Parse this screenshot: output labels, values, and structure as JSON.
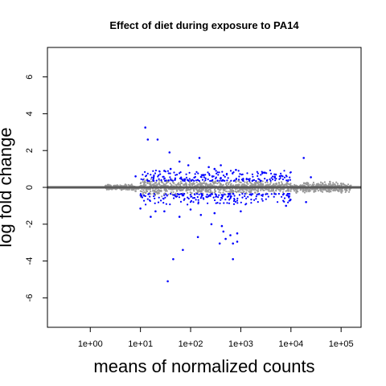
{
  "chart_data": {
    "type": "scatter",
    "title": "Effect of diet during exposure to PA14",
    "xlabel": "means of normalized counts",
    "ylabel": "log fold change",
    "x_scale": "log10",
    "xlim": [
      0.14,
      250000
    ],
    "ylim": [
      -7.6,
      7.6
    ],
    "x_ticks": [
      {
        "value": 1,
        "label": "1e+00"
      },
      {
        "value": 10,
        "label": "1e+01"
      },
      {
        "value": 100,
        "label": "1e+02"
      },
      {
        "value": 1000,
        "label": "1e+03"
      },
      {
        "value": 10000,
        "label": "1e+04"
      },
      {
        "value": 100000,
        "label": "1e+05"
      }
    ],
    "y_ticks": [
      {
        "value": 6,
        "label": "6"
      },
      {
        "value": 4,
        "label": "4"
      },
      {
        "value": 2,
        "label": "2"
      },
      {
        "value": 0,
        "label": "0"
      },
      {
        "value": -2,
        "label": "-2"
      },
      {
        "value": -4,
        "label": "-4"
      },
      {
        "value": -6,
        "label": "-6"
      }
    ],
    "zero_line": {
      "y": 0,
      "color": "#595959"
    },
    "colors": {
      "significant": "#0000ff",
      "not_significant": "#999999",
      "zero_line": "#595959"
    },
    "series": [
      {
        "color": "#0000ff",
        "points": [
          {
            "x": 12.5,
            "y": 3.25
          },
          {
            "x": 14,
            "y": 2.6
          },
          {
            "x": 22,
            "y": 2.6
          },
          {
            "x": 38,
            "y": 1.9
          },
          {
            "x": 18000,
            "y": 1.6
          },
          {
            "x": 150,
            "y": 1.6
          },
          {
            "x": 60,
            "y": 1.4
          },
          {
            "x": 90,
            "y": 1.2
          },
          {
            "x": 400,
            "y": 1.2
          },
          {
            "x": 230,
            "y": 1.1
          },
          {
            "x": 300,
            "y": 1.0
          },
          {
            "x": 800,
            "y": 0.95
          },
          {
            "x": 40,
            "y": 1.0
          },
          {
            "x": 30,
            "y": 0.9
          },
          {
            "x": 3000,
            "y": 0.8
          },
          {
            "x": 5000,
            "y": 0.7
          },
          {
            "x": 25000,
            "y": 0.55
          },
          {
            "x": 8,
            "y": 0.6
          },
          {
            "x": 10,
            "y": -1.15
          },
          {
            "x": 16,
            "y": -1.6
          },
          {
            "x": 20,
            "y": -1.3
          },
          {
            "x": 60,
            "y": -1.6
          },
          {
            "x": 30,
            "y": -1.3
          },
          {
            "x": 100,
            "y": -1.2
          },
          {
            "x": 160,
            "y": -1.5
          },
          {
            "x": 300,
            "y": -1.4
          },
          {
            "x": 1000,
            "y": -1.3
          },
          {
            "x": 8000,
            "y": -1.0
          },
          {
            "x": 20000,
            "y": -0.8
          },
          {
            "x": 140,
            "y": -2.7
          },
          {
            "x": 450,
            "y": -2.4
          },
          {
            "x": 500,
            "y": -2.8
          },
          {
            "x": 620,
            "y": -2.6
          },
          {
            "x": 850,
            "y": -2.5
          },
          {
            "x": 850,
            "y": -2.95
          },
          {
            "x": 380,
            "y": -3.05
          },
          {
            "x": 700,
            "y": -3.05
          },
          {
            "x": 420,
            "y": -2.1
          },
          {
            "x": 260,
            "y": -2.0
          },
          {
            "x": 70,
            "y": -3.4
          },
          {
            "x": 45,
            "y": -3.9
          },
          {
            "x": 700,
            "y": -3.9
          },
          {
            "x": 35,
            "y": -5.1
          }
        ]
      },
      {
        "color": "#999999",
        "points": [
          {
            "x": 5,
            "y": 0.15
          },
          {
            "x": 8,
            "y": -0.2
          },
          {
            "x": 12,
            "y": 0.25
          },
          {
            "x": 30,
            "y": -0.35
          },
          {
            "x": 60000,
            "y": 0.3
          },
          {
            "x": 90000,
            "y": -0.2
          }
        ]
      }
    ]
  }
}
